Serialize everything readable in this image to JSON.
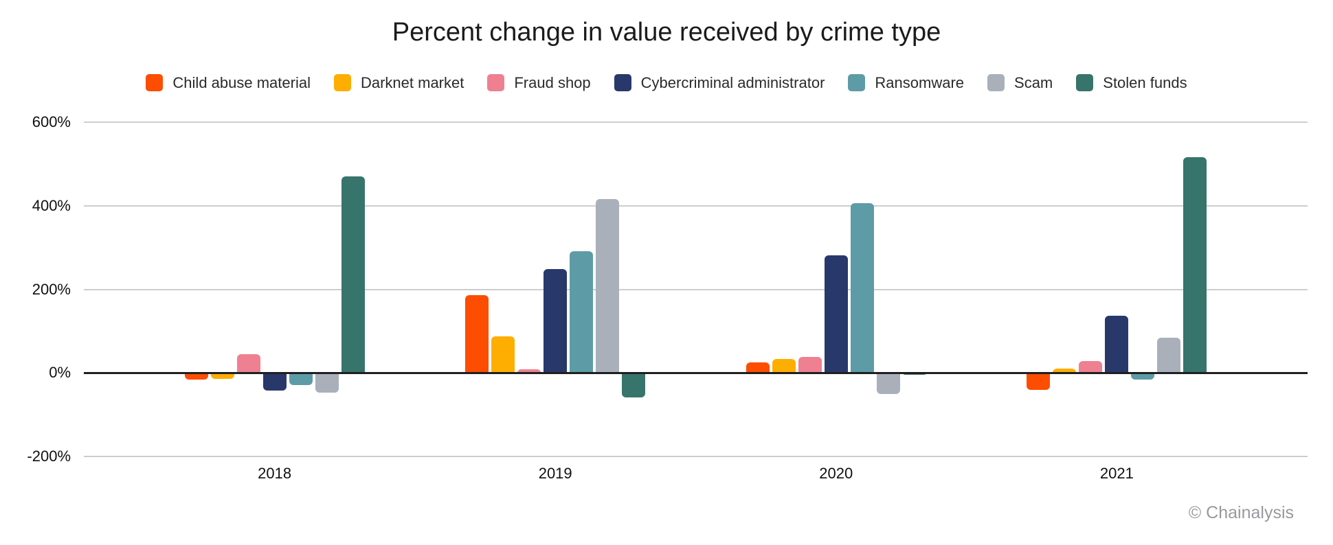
{
  "watermark": "© Chainalysis",
  "chart_data": {
    "type": "bar",
    "title": "Percent change in value received by crime type",
    "xlabel": "",
    "ylabel": "",
    "categories": [
      "2018",
      "2019",
      "2020",
      "2021"
    ],
    "series": [
      {
        "name": "Child abuse material",
        "color": "#fc4d00",
        "values": [
          -16,
          186,
          25,
          -40
        ]
      },
      {
        "name": "Darknet market",
        "color": "#fdae01",
        "values": [
          -14,
          87,
          33,
          11
        ]
      },
      {
        "name": "Fraud shop",
        "color": "#ef8091",
        "values": [
          44,
          9,
          39,
          28
        ]
      },
      {
        "name": "Cybercriminal administrator",
        "color": "#29386b",
        "values": [
          -43,
          248,
          281,
          137
        ]
      },
      {
        "name": "Ransomware",
        "color": "#5d9ca6",
        "values": [
          -29,
          291,
          407,
          -16
        ]
      },
      {
        "name": "Scam",
        "color": "#a9b0ba",
        "values": [
          -47,
          416,
          -51,
          84
        ]
      },
      {
        "name": "Stolen funds",
        "color": "#37746b",
        "values": [
          470,
          -59,
          -5,
          516
        ]
      }
    ],
    "ylim": [
      -200,
      600
    ],
    "y_ticks": [
      600,
      400,
      200,
      0,
      -200
    ],
    "y_tick_labels": [
      "600%",
      "400%",
      "200%",
      "0%",
      "-200%"
    ],
    "grid": true,
    "legend_position": "top",
    "unit": "%"
  }
}
